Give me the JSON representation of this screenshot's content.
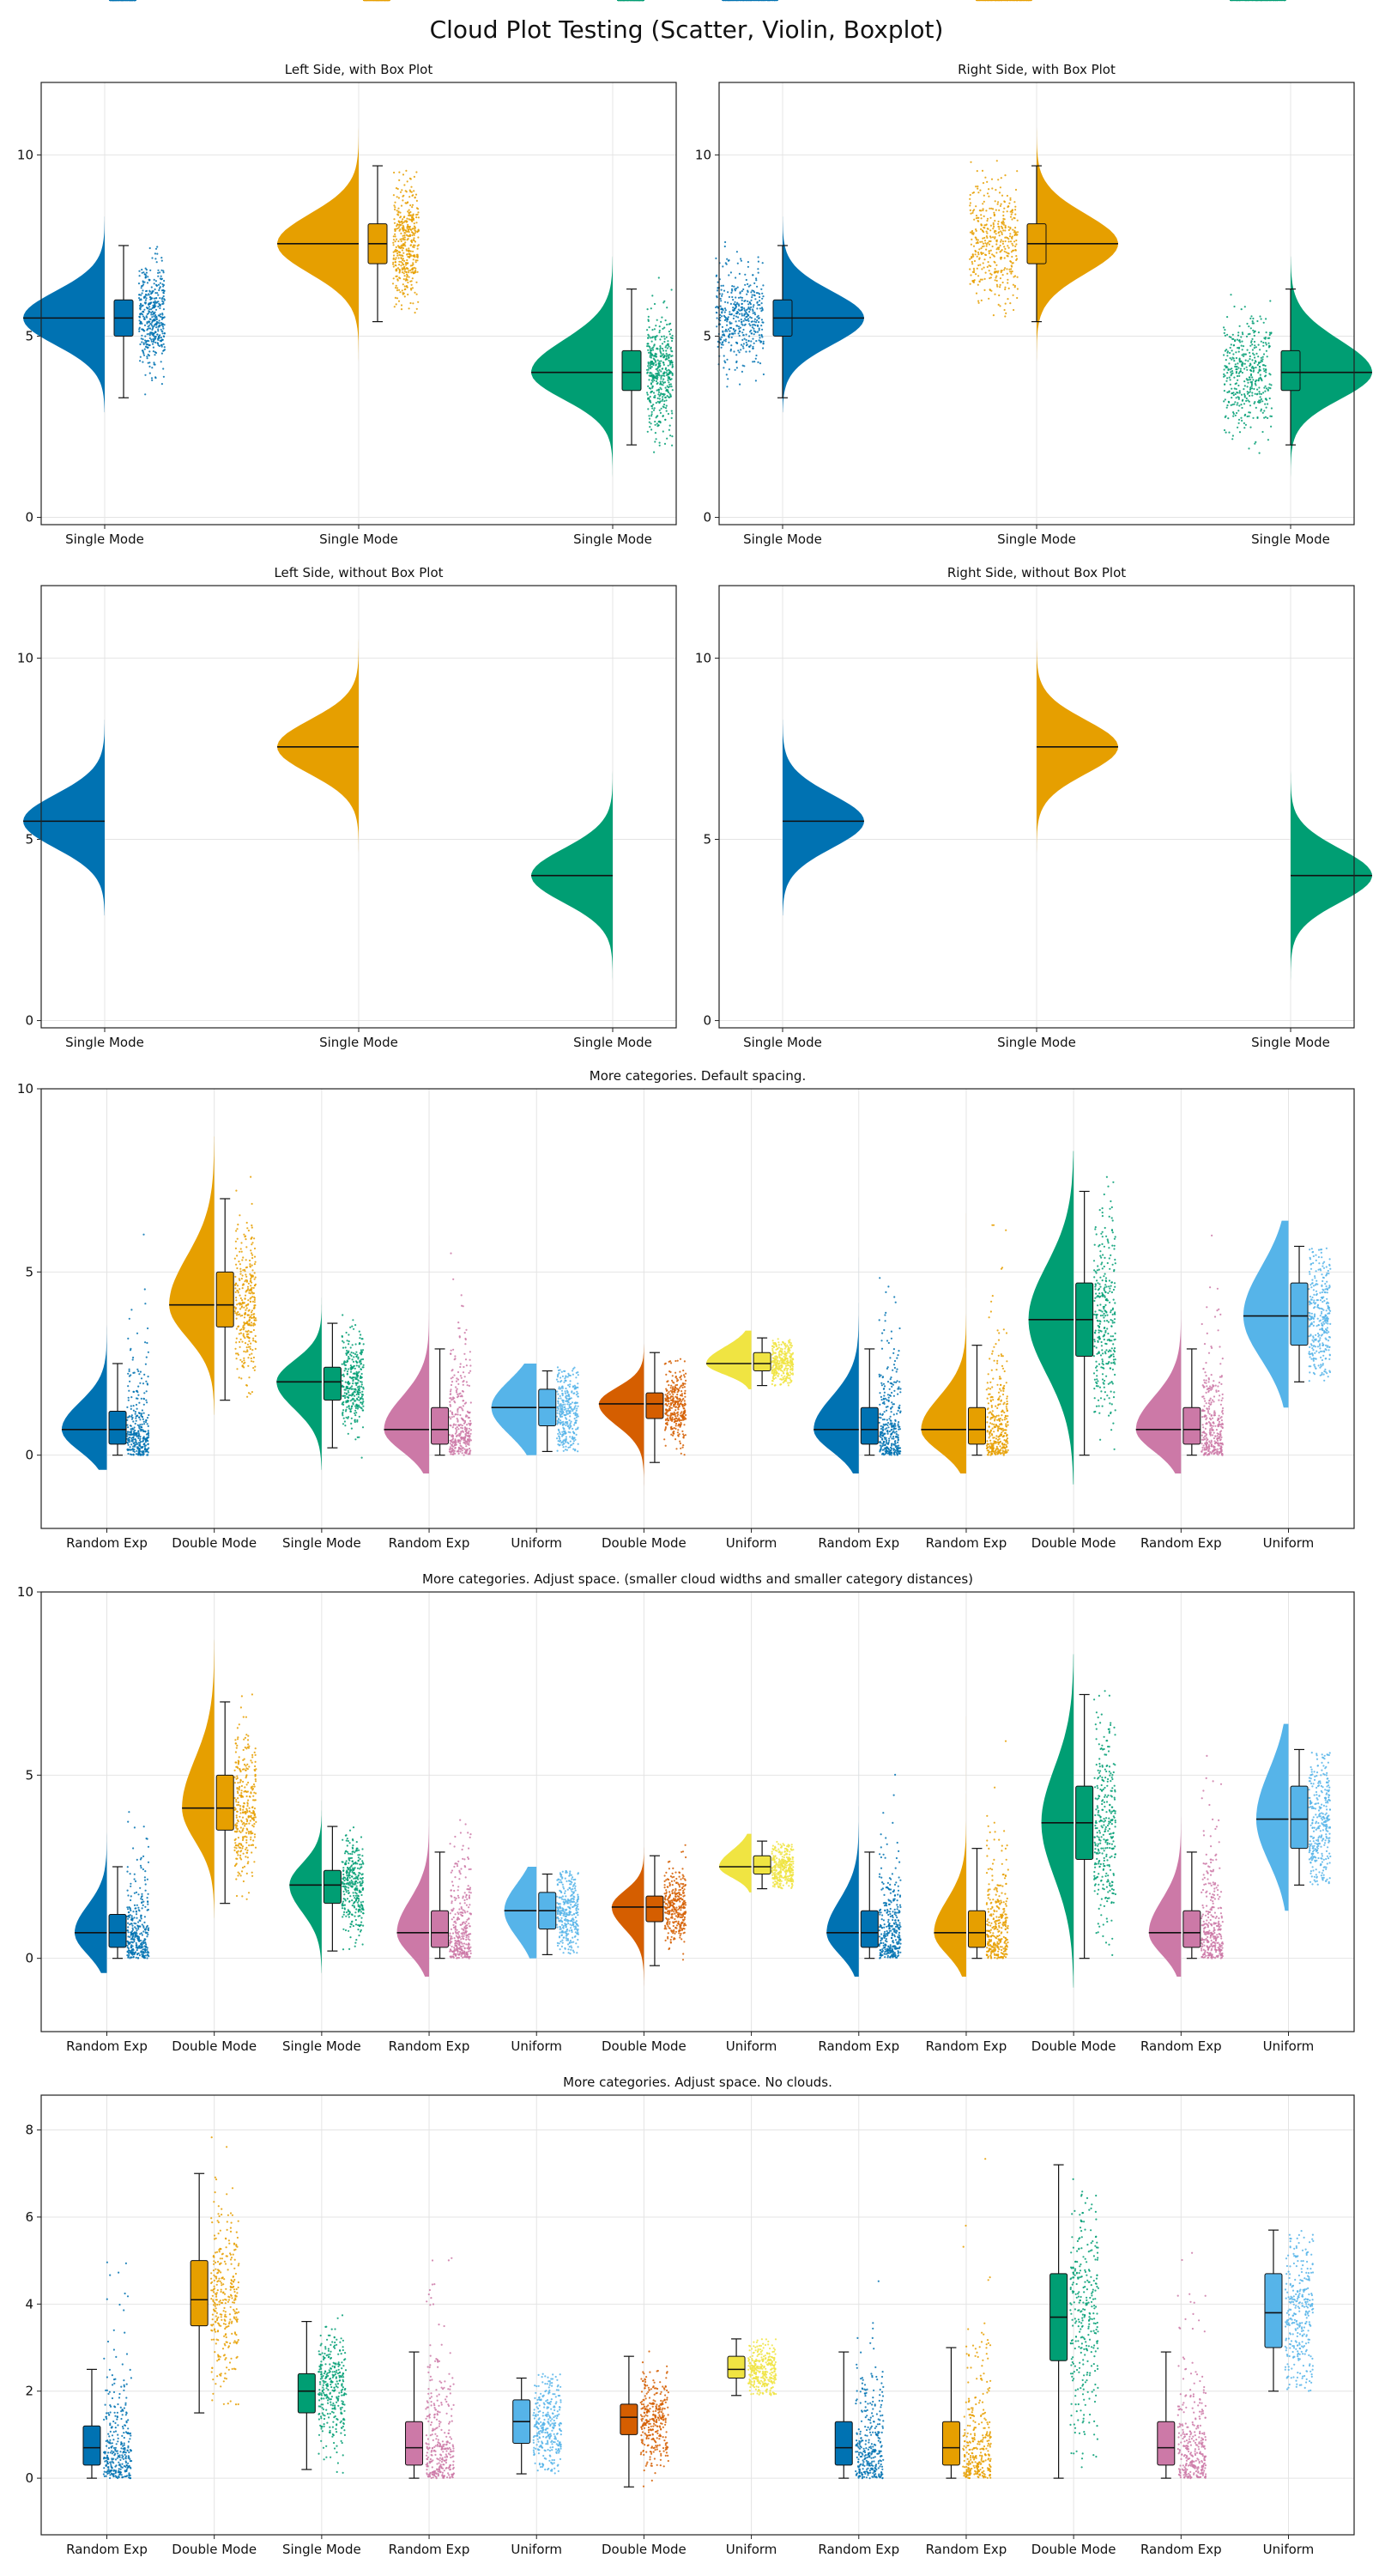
{
  "figure_title": "Cloud Plot Testing (Scatter, Violin, Boxplot)",
  "palette": {
    "blue": "#0072b2",
    "orange": "#e69f00",
    "green": "#009e73",
    "pink": "#cc79a7",
    "skyblue": "#56b4e9",
    "vermillion": "#d55e00",
    "yellow": "#f0e442"
  },
  "chart_data": [
    {
      "type": "violin",
      "title": "Left Side, with Box Plot",
      "xlabel": "",
      "ylabel": "",
      "ylim": [
        -0.2,
        12
      ],
      "yticks": [
        0,
        5,
        10
      ],
      "grid": true,
      "cloud_side": "left",
      "show_box": true,
      "show_cloud": true,
      "categories": [
        "Single Mode",
        "Single Mode",
        "Single Mode"
      ],
      "colors": [
        "blue",
        "orange",
        "green"
      ],
      "series": [
        {
          "min": 3.3,
          "q1": 5.0,
          "median": 5.5,
          "q3": 6.0,
          "max": 7.5,
          "cloud_min": 2.9,
          "cloud_max": 8.3,
          "scatter_min": 3.2,
          "scatter_max": 7.8
        },
        {
          "min": 5.4,
          "q1": 7.0,
          "median": 7.55,
          "q3": 8.1,
          "max": 9.7,
          "cloud_min": 4.3,
          "cloud_max": 11.1,
          "scatter_min": 4.9,
          "scatter_max": 10.5
        },
        {
          "min": 2.0,
          "q1": 3.5,
          "median": 4.0,
          "q3": 4.6,
          "max": 6.3,
          "cloud_min": 0.9,
          "cloud_max": 7.2,
          "scatter_min": 1.3,
          "scatter_max": 6.7
        }
      ]
    },
    {
      "type": "violin",
      "title": "Right Side, with Box Plot",
      "xlabel": "",
      "ylabel": "",
      "ylim": [
        -0.2,
        12
      ],
      "yticks": [
        0,
        5,
        10
      ],
      "grid": true,
      "cloud_side": "right",
      "show_box": true,
      "show_cloud": true,
      "categories": [
        "Single Mode",
        "Single Mode",
        "Single Mode"
      ],
      "colors": [
        "blue",
        "orange",
        "green"
      ],
      "series": [
        {
          "min": 3.3,
          "q1": 5.0,
          "median": 5.5,
          "q3": 6.0,
          "max": 7.5,
          "cloud_min": 2.9,
          "cloud_max": 8.3,
          "scatter_min": 3.2,
          "scatter_max": 7.8
        },
        {
          "min": 5.4,
          "q1": 7.0,
          "median": 7.55,
          "q3": 8.1,
          "max": 9.7,
          "cloud_min": 4.3,
          "cloud_max": 11.1,
          "scatter_min": 4.9,
          "scatter_max": 10.5
        },
        {
          "min": 2.0,
          "q1": 3.5,
          "median": 4.0,
          "q3": 4.6,
          "max": 6.3,
          "cloud_min": 0.9,
          "cloud_max": 7.2,
          "scatter_min": 1.3,
          "scatter_max": 6.7
        }
      ]
    },
    {
      "type": "violin",
      "title": "Left Side, without Box Plot",
      "xlabel": "",
      "ylabel": "",
      "ylim": [
        -0.2,
        12
      ],
      "yticks": [
        0,
        5,
        10
      ],
      "grid": true,
      "cloud_side": "left",
      "show_box": false,
      "show_cloud": true,
      "categories": [
        "Single Mode",
        "Single Mode",
        "Single Mode"
      ],
      "colors": [
        "blue",
        "orange",
        "green"
      ],
      "series": [
        {
          "median": 5.5,
          "cloud_min": 2.9,
          "cloud_max": 8.3,
          "scatter_min": 3.2,
          "scatter_max": 7.8
        },
        {
          "median": 7.55,
          "cloud_min": 4.3,
          "cloud_max": 11.1,
          "scatter_min": 4.9,
          "scatter_max": 10.5
        },
        {
          "median": 4.0,
          "cloud_min": 0.9,
          "cloud_max": 7.2,
          "scatter_min": 1.3,
          "scatter_max": 6.7
        }
      ]
    },
    {
      "type": "violin",
      "title": "Right Side, without Box Plot",
      "xlabel": "",
      "ylabel": "",
      "ylim": [
        -0.2,
        12
      ],
      "yticks": [
        0,
        5,
        10
      ],
      "grid": true,
      "cloud_side": "right",
      "show_box": false,
      "show_cloud": true,
      "categories": [
        "Single Mode",
        "Single Mode",
        "Single Mode"
      ],
      "colors": [
        "blue",
        "orange",
        "green"
      ],
      "series": [
        {
          "median": 5.5,
          "cloud_min": 2.9,
          "cloud_max": 8.3,
          "scatter_min": 3.2,
          "scatter_max": 7.8
        },
        {
          "median": 7.55,
          "cloud_min": 4.3,
          "cloud_max": 11.1,
          "scatter_min": 4.9,
          "scatter_max": 10.5
        },
        {
          "median": 4.0,
          "cloud_min": 0.9,
          "cloud_max": 7.2,
          "scatter_min": 1.3,
          "scatter_max": 6.7
        }
      ]
    },
    {
      "type": "violin",
      "title": "More categories. Default spacing.",
      "xlabel": "",
      "ylabel": "",
      "ylim": [
        -2,
        10
      ],
      "yticks": [
        0,
        5,
        10
      ],
      "grid": true,
      "cloud_side": "left",
      "show_box": true,
      "show_cloud": true,
      "categories": [
        "Random Exp",
        "Double Mode",
        "Single Mode",
        "Random Exp",
        "Uniform",
        "Double Mode",
        "Uniform",
        "Random Exp",
        "Random Exp",
        "Double Mode",
        "Random Exp",
        "Uniform"
      ],
      "colors": [
        "blue",
        "orange",
        "green",
        "pink",
        "skyblue",
        "vermillion",
        "yellow",
        "blue",
        "orange",
        "green",
        "pink",
        "skyblue"
      ],
      "series": [
        {
          "min": 0.0,
          "q1": 0.3,
          "median": 0.7,
          "q3": 1.2,
          "max": 2.5,
          "cloud_min": -0.4,
          "cloud_max": 6.6,
          "scatter_min": 0.0,
          "scatter_max": 6.5
        },
        {
          "min": 1.5,
          "q1": 3.5,
          "median": 4.1,
          "q3": 5.0,
          "max": 7.0,
          "cloud_min": 1.1,
          "cloud_max": 8.7,
          "scatter_min": 1.5,
          "scatter_max": 8.3
        },
        {
          "min": 0.2,
          "q1": 1.5,
          "median": 2.0,
          "q3": 2.4,
          "max": 3.6,
          "cloud_min": -0.4,
          "cloud_max": 4.3,
          "scatter_min": -0.2,
          "scatter_max": 4.1
        },
        {
          "min": 0.0,
          "q1": 0.3,
          "median": 0.7,
          "q3": 1.3,
          "max": 2.9,
          "cloud_min": -0.5,
          "cloud_max": 6.0,
          "scatter_min": 0.0,
          "scatter_max": 5.9
        },
        {
          "min": 0.1,
          "q1": 0.8,
          "median": 1.3,
          "q3": 1.8,
          "max": 2.3,
          "cloud_min": 0.0,
          "cloud_max": 2.5,
          "scatter_min": 0.1,
          "scatter_max": 2.4
        },
        {
          "min": -0.2,
          "q1": 1.0,
          "median": 1.4,
          "q3": 1.7,
          "max": 2.8,
          "cloud_min": -1.1,
          "cloud_max": 3.7,
          "scatter_min": -0.9,
          "scatter_max": 3.6
        },
        {
          "min": 1.9,
          "q1": 2.3,
          "median": 2.5,
          "q3": 2.8,
          "max": 3.2,
          "cloud_min": 1.8,
          "cloud_max": 3.4,
          "scatter_min": 1.9,
          "scatter_max": 3.2
        },
        {
          "min": 0.0,
          "q1": 0.3,
          "median": 0.7,
          "q3": 1.3,
          "max": 2.9,
          "cloud_min": -0.5,
          "cloud_max": 5.4,
          "scatter_min": 0.0,
          "scatter_max": 5.2
        },
        {
          "min": 0.0,
          "q1": 0.3,
          "median": 0.7,
          "q3": 1.3,
          "max": 3.0,
          "cloud_min": -0.5,
          "cloud_max": 6.6,
          "scatter_min": 0.0,
          "scatter_max": 7.9
        },
        {
          "min": 0.0,
          "q1": 2.7,
          "median": 3.7,
          "q3": 4.7,
          "max": 7.2,
          "cloud_min": -0.8,
          "cloud_max": 8.3,
          "scatter_min": 0.0,
          "scatter_max": 7.8
        },
        {
          "min": 0.0,
          "q1": 0.3,
          "median": 0.7,
          "q3": 1.3,
          "max": 2.9,
          "cloud_min": -0.5,
          "cloud_max": 5.0,
          "scatter_min": 0.0,
          "scatter_max": 6.8
        },
        {
          "min": 2.0,
          "q1": 3.0,
          "median": 3.8,
          "q3": 4.7,
          "max": 5.7,
          "cloud_min": 1.3,
          "cloud_max": 6.4,
          "scatter_min": 2.0,
          "scatter_max": 5.7
        }
      ]
    },
    {
      "type": "violin",
      "title": "More categories. Adjust space. (smaller cloud widths and smaller category distances)",
      "xlabel": "",
      "ylabel": "",
      "ylim": [
        -2,
        10
      ],
      "yticks": [
        0,
        5,
        10
      ],
      "grid": true,
      "cloud_side": "left",
      "show_box": true,
      "show_cloud": true,
      "categories": [
        "Random Exp",
        "Double Mode",
        "Single Mode",
        "Random Exp",
        "Uniform",
        "Double Mode",
        "Uniform",
        "Random Exp",
        "Random Exp",
        "Double Mode",
        "Random Exp",
        "Uniform"
      ],
      "colors": [
        "blue",
        "orange",
        "green",
        "pink",
        "skyblue",
        "vermillion",
        "yellow",
        "blue",
        "orange",
        "green",
        "pink",
        "skyblue"
      ],
      "series": [
        {
          "min": 0.0,
          "q1": 0.3,
          "median": 0.7,
          "q3": 1.2,
          "max": 2.5,
          "cloud_min": -0.4,
          "cloud_max": 6.6,
          "scatter_min": 0.0,
          "scatter_max": 6.5
        },
        {
          "min": 1.5,
          "q1": 3.5,
          "median": 4.1,
          "q3": 5.0,
          "max": 7.0,
          "cloud_min": 1.1,
          "cloud_max": 8.7,
          "scatter_min": 1.5,
          "scatter_max": 8.3
        },
        {
          "min": 0.2,
          "q1": 1.5,
          "median": 2.0,
          "q3": 2.4,
          "max": 3.6,
          "cloud_min": -0.4,
          "cloud_max": 4.3,
          "scatter_min": -0.2,
          "scatter_max": 4.1
        },
        {
          "min": 0.0,
          "q1": 0.3,
          "median": 0.7,
          "q3": 1.3,
          "max": 2.9,
          "cloud_min": -0.5,
          "cloud_max": 6.0,
          "scatter_min": 0.0,
          "scatter_max": 5.9
        },
        {
          "min": 0.1,
          "q1": 0.8,
          "median": 1.3,
          "q3": 1.8,
          "max": 2.3,
          "cloud_min": 0.0,
          "cloud_max": 2.5,
          "scatter_min": 0.1,
          "scatter_max": 2.4
        },
        {
          "min": -0.2,
          "q1": 1.0,
          "median": 1.4,
          "q3": 1.7,
          "max": 2.8,
          "cloud_min": -1.1,
          "cloud_max": 3.7,
          "scatter_min": -0.9,
          "scatter_max": 3.6
        },
        {
          "min": 1.9,
          "q1": 2.3,
          "median": 2.5,
          "q3": 2.8,
          "max": 3.2,
          "cloud_min": 1.8,
          "cloud_max": 3.4,
          "scatter_min": 1.9,
          "scatter_max": 3.2
        },
        {
          "min": 0.0,
          "q1": 0.3,
          "median": 0.7,
          "q3": 1.3,
          "max": 2.9,
          "cloud_min": -0.5,
          "cloud_max": 5.4,
          "scatter_min": 0.0,
          "scatter_max": 5.2
        },
        {
          "min": 0.0,
          "q1": 0.3,
          "median": 0.7,
          "q3": 1.3,
          "max": 3.0,
          "cloud_min": -0.5,
          "cloud_max": 6.6,
          "scatter_min": 0.0,
          "scatter_max": 7.9
        },
        {
          "min": 0.0,
          "q1": 2.7,
          "median": 3.7,
          "q3": 4.7,
          "max": 7.2,
          "cloud_min": -0.8,
          "cloud_max": 8.3,
          "scatter_min": 0.0,
          "scatter_max": 7.8
        },
        {
          "min": 0.0,
          "q1": 0.3,
          "median": 0.7,
          "q3": 1.3,
          "max": 2.9,
          "cloud_min": -0.5,
          "cloud_max": 5.0,
          "scatter_min": 0.0,
          "scatter_max": 6.8
        },
        {
          "min": 2.0,
          "q1": 3.0,
          "median": 3.8,
          "q3": 4.7,
          "max": 5.7,
          "cloud_min": 1.3,
          "cloud_max": 6.4,
          "scatter_min": 2.0,
          "scatter_max": 5.7
        }
      ]
    },
    {
      "type": "boxplot",
      "title": "More categories. Adjust space. No clouds.",
      "xlabel": "",
      "ylabel": "",
      "ylim": [
        -1.3,
        8.8
      ],
      "yticks": [
        0,
        2,
        4,
        6,
        8
      ],
      "grid": true,
      "cloud_side": "none",
      "show_box": true,
      "show_cloud": false,
      "categories": [
        "Random Exp",
        "Double Mode",
        "Single Mode",
        "Random Exp",
        "Uniform",
        "Double Mode",
        "Uniform",
        "Random Exp",
        "Random Exp",
        "Double Mode",
        "Random Exp",
        "Uniform"
      ],
      "colors": [
        "blue",
        "orange",
        "green",
        "pink",
        "skyblue",
        "vermillion",
        "yellow",
        "blue",
        "orange",
        "green",
        "pink",
        "skyblue"
      ],
      "series": [
        {
          "min": 0.0,
          "q1": 0.3,
          "median": 0.7,
          "q3": 1.2,
          "max": 2.5,
          "scatter_min": 0.0,
          "scatter_max": 6.5
        },
        {
          "min": 1.5,
          "q1": 3.5,
          "median": 4.1,
          "q3": 5.0,
          "max": 7.0,
          "scatter_min": 1.5,
          "scatter_max": 8.3
        },
        {
          "min": 0.2,
          "q1": 1.5,
          "median": 2.0,
          "q3": 2.4,
          "max": 3.6,
          "scatter_min": -0.2,
          "scatter_max": 4.1
        },
        {
          "min": 0.0,
          "q1": 0.3,
          "median": 0.7,
          "q3": 1.3,
          "max": 2.9,
          "scatter_min": 0.0,
          "scatter_max": 5.9
        },
        {
          "min": 0.1,
          "q1": 0.8,
          "median": 1.3,
          "q3": 1.8,
          "max": 2.3,
          "scatter_min": 0.1,
          "scatter_max": 2.4
        },
        {
          "min": -0.2,
          "q1": 1.0,
          "median": 1.4,
          "q3": 1.7,
          "max": 2.8,
          "scatter_min": -0.9,
          "scatter_max": 3.6
        },
        {
          "min": 1.9,
          "q1": 2.3,
          "median": 2.5,
          "q3": 2.8,
          "max": 3.2,
          "scatter_min": 1.9,
          "scatter_max": 3.2
        },
        {
          "min": 0.0,
          "q1": 0.3,
          "median": 0.7,
          "q3": 1.3,
          "max": 2.9,
          "scatter_min": 0.0,
          "scatter_max": 5.2
        },
        {
          "min": 0.0,
          "q1": 0.3,
          "median": 0.7,
          "q3": 1.3,
          "max": 3.0,
          "scatter_min": 0.0,
          "scatter_max": 7.9
        },
        {
          "min": 0.0,
          "q1": 2.7,
          "median": 3.7,
          "q3": 4.7,
          "max": 7.2,
          "scatter_min": 0.0,
          "scatter_max": 7.8
        },
        {
          "min": 0.0,
          "q1": 0.3,
          "median": 0.7,
          "q3": 1.3,
          "max": 2.9,
          "scatter_min": 0.0,
          "scatter_max": 6.8
        },
        {
          "min": 2.0,
          "q1": 3.0,
          "median": 3.8,
          "q3": 4.7,
          "max": 5.7,
          "scatter_min": 2.0,
          "scatter_max": 5.7
        }
      ]
    }
  ]
}
